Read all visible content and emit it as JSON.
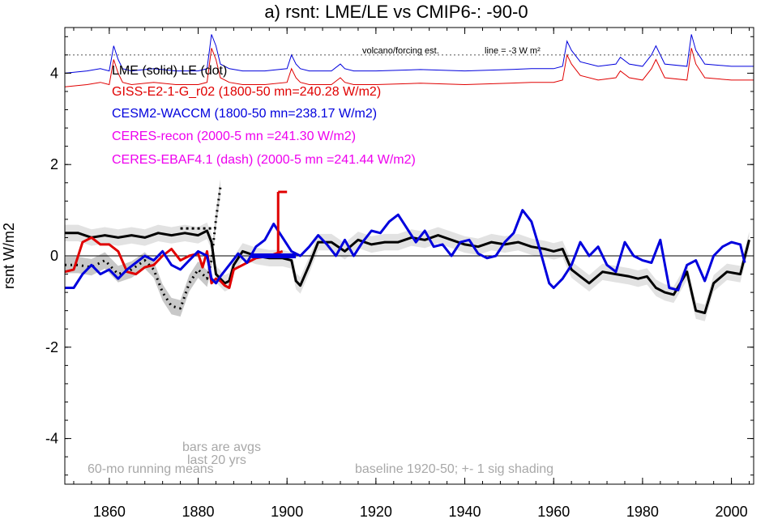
{
  "chart_data": {
    "type": "line",
    "title": "a) rsnt: LME/LE vs CMIP6-: -90-0",
    "ylabel": "rsnt W/m2",
    "xlabel": "",
    "xlim": [
      1850,
      2005
    ],
    "ylim": [
      -5,
      5
    ],
    "x_ticks": [
      1860,
      1880,
      1900,
      1920,
      1940,
      1960,
      1980,
      2000
    ],
    "y_ticks": [
      -4,
      -2,
      0,
      2,
      4
    ],
    "grid": false,
    "legend_placement": "top-left",
    "annotations": {
      "volcano": "volcano/forcing est.",
      "line_note": "line = -3 W m²",
      "bars": "bars are avgs",
      "bars2": "last 20 yrs",
      "running": "60-mo running means",
      "baseline": "baseline 1920-50; +- 1 sig shading"
    },
    "legend": [
      {
        "label": "LME (solid)   LE (dot)",
        "color": "#000000"
      },
      {
        "label": "GISS-E2-1-G_r02 (1800-50 mn=240.28 W/m2)",
        "color": "#e00000"
      },
      {
        "label": "CESM2-WACCM (1800-50 mn=238.17 W/m2)",
        "color": "#0000dd"
      },
      {
        "label": "CERES-recon (2000-5 mn =241.30 W/m2)",
        "color": "#ee00ee"
      },
      {
        "label": "CERES-EBAF4.1 (dash) (2000-5 mn =241.44 W/m2)",
        "color": "#ee00ee"
      }
    ],
    "series": [
      {
        "name": "LME (solid)",
        "color": "#000000",
        "x": [
          1850,
          1853,
          1856,
          1859,
          1862,
          1865,
          1868,
          1871,
          1874,
          1877,
          1880,
          1882,
          1883,
          1884,
          1885,
          1886,
          1887,
          1888,
          1890,
          1893,
          1896,
          1899,
          1901,
          1902,
          1903,
          1905,
          1907,
          1910,
          1913,
          1916,
          1919,
          1922,
          1925,
          1928,
          1931,
          1934,
          1937,
          1940,
          1943,
          1946,
          1949,
          1952,
          1955,
          1958,
          1960,
          1962,
          1964,
          1966,
          1968,
          1971,
          1974,
          1977,
          1979,
          1981,
          1983,
          1985,
          1987,
          1990,
          1992,
          1994,
          1996,
          1999,
          2002,
          2004
        ],
        "y": [
          0.5,
          0.5,
          0.4,
          0.45,
          0.4,
          0.45,
          0.4,
          0.5,
          0.45,
          0.5,
          0.45,
          0.55,
          0.3,
          -0.4,
          -0.5,
          -0.6,
          -0.55,
          -0.2,
          0.1,
          0.0,
          -0.05,
          -0.05,
          -0.1,
          -0.55,
          -0.65,
          -0.2,
          0.3,
          0.3,
          0.1,
          0.35,
          0.25,
          0.3,
          0.3,
          0.4,
          0.35,
          0.45,
          0.35,
          0.25,
          0.2,
          0.3,
          0.25,
          0.3,
          0.2,
          0.15,
          0.1,
          0.15,
          -0.3,
          -0.45,
          -0.6,
          -0.35,
          -0.4,
          -0.45,
          -0.5,
          -0.45,
          -0.7,
          -0.8,
          -0.85,
          -0.35,
          -1.2,
          -1.25,
          -0.6,
          -0.35,
          -0.4,
          0.35
        ]
      },
      {
        "name": "LE (dot)",
        "color": "#000000",
        "x": [
          1850,
          1853,
          1856,
          1859,
          1862,
          1865,
          1868,
          1870,
          1872,
          1874,
          1876,
          1878,
          1880,
          1882,
          1883,
          1884,
          1885
        ],
        "y": [
          -0.2,
          -0.2,
          -0.25,
          -0.1,
          -0.4,
          -0.3,
          -0.1,
          -0.3,
          -0.8,
          -1.1,
          -1.15,
          -0.6,
          -0.3,
          -0.5,
          -0.1,
          0.8,
          1.5
        ]
      },
      {
        "name": "GISS-E2-1-G_r02",
        "color": "#e00000",
        "x": [
          1850,
          1852,
          1854,
          1856,
          1858,
          1860,
          1862,
          1864,
          1866,
          1868,
          1870,
          1872,
          1874,
          1876,
          1878,
          1880,
          1881,
          1882,
          1883,
          1884,
          1885,
          1886,
          1887,
          1888,
          1890,
          1893,
          1896,
          1899
        ],
        "y": [
          -0.35,
          -0.3,
          0.3,
          0.4,
          0.25,
          0.25,
          0.1,
          -0.35,
          -0.4,
          -0.25,
          -0.2,
          0.0,
          0.15,
          -0.1,
          0.0,
          0.05,
          -0.25,
          0.1,
          -0.6,
          -0.5,
          -0.55,
          -0.65,
          -0.7,
          -0.3,
          -0.2,
          -0.05,
          0.0,
          0.1
        ]
      },
      {
        "name": "CESM2-WACCM",
        "color": "#0000dd",
        "x": [
          1850,
          1852,
          1854,
          1856,
          1858,
          1860,
          1862,
          1864,
          1866,
          1868,
          1870,
          1872,
          1874,
          1876,
          1878,
          1880,
          1882,
          1883,
          1884,
          1885,
          1887,
          1889,
          1891,
          1893,
          1895,
          1897,
          1899,
          1901,
          1903,
          1905,
          1907,
          1909,
          1911,
          1913,
          1915,
          1917,
          1919,
          1921,
          1923,
          1925,
          1927,
          1929,
          1931,
          1933,
          1935,
          1937,
          1939,
          1941,
          1943,
          1945,
          1947,
          1949,
          1951,
          1953,
          1955,
          1957,
          1959,
          1960,
          1962,
          1964,
          1966,
          1968,
          1970,
          1972,
          1974,
          1976,
          1978,
          1980,
          1982,
          1984,
          1986,
          1988,
          1990,
          1992,
          1994,
          1996,
          1998,
          2000,
          2002,
          2003
        ],
        "y": [
          -0.7,
          -0.7,
          -0.4,
          -0.2,
          -0.4,
          -0.3,
          -0.5,
          -0.3,
          -0.15,
          0.0,
          -0.1,
          0.1,
          -0.2,
          -0.3,
          -0.1,
          0.1,
          0.0,
          -0.5,
          -0.6,
          -0.45,
          -0.2,
          0.05,
          -0.15,
          0.2,
          0.35,
          0.7,
          0.4,
          0.1,
          0.0,
          0.2,
          0.45,
          0.25,
          0.0,
          0.35,
          0.0,
          0.3,
          0.55,
          0.5,
          0.75,
          0.9,
          0.6,
          0.3,
          0.55,
          0.2,
          0.25,
          0.0,
          0.3,
          0.35,
          0.05,
          -0.05,
          0.0,
          0.3,
          0.5,
          1.0,
          0.75,
          0.1,
          -0.6,
          -0.7,
          -0.5,
          -0.2,
          0.3,
          0.0,
          0.2,
          -0.2,
          -0.35,
          0.3,
          0.0,
          -0.1,
          -0.15,
          0.35,
          -0.7,
          -0.75,
          -0.2,
          -0.1,
          -0.55,
          0.0,
          0.2,
          0.3,
          0.25,
          -0.15
        ]
      }
    ],
    "bars": [
      {
        "name": "LME",
        "color": "#000000",
        "x0": 1876,
        "x1": 1884,
        "value": 0.6,
        "style": "dotted"
      },
      {
        "name": "GISS",
        "color": "#e00000",
        "x0": 1898,
        "x1": 1900,
        "value": 1.4
      },
      {
        "name": "CESM2",
        "color": "#0000dd",
        "x0": 1892,
        "x1": 1902,
        "value": 0.0
      }
    ],
    "forcing": {
      "x": [
        1850,
        1855,
        1858,
        1860,
        1861,
        1862,
        1863,
        1865,
        1870,
        1875,
        1880,
        1882,
        1883,
        1884,
        1885,
        1887,
        1890,
        1895,
        1900,
        1901,
        1902,
        1903,
        1905,
        1910,
        1912,
        1913,
        1915,
        1920,
        1930,
        1940,
        1950,
        1955,
        1960,
        1962,
        1963,
        1964,
        1966,
        1970,
        1974,
        1975,
        1977,
        1980,
        1982,
        1983,
        1985,
        1990,
        1991,
        1992,
        1994,
        2000,
        2005
      ],
      "y": [
        4.0,
        4.05,
        4.1,
        4.05,
        4.6,
        4.3,
        4.1,
        4.05,
        4.1,
        4.05,
        4.05,
        4.1,
        4.85,
        4.6,
        4.2,
        4.1,
        4.05,
        4.05,
        4.1,
        4.4,
        4.2,
        4.1,
        4.05,
        4.05,
        4.2,
        4.1,
        4.05,
        4.05,
        4.08,
        4.05,
        4.08,
        4.1,
        4.1,
        4.15,
        4.7,
        4.5,
        4.25,
        4.15,
        4.2,
        4.35,
        4.2,
        4.15,
        4.4,
        4.6,
        4.2,
        4.15,
        4.85,
        4.5,
        4.2,
        4.15,
        4.15
      ]
    }
  }
}
